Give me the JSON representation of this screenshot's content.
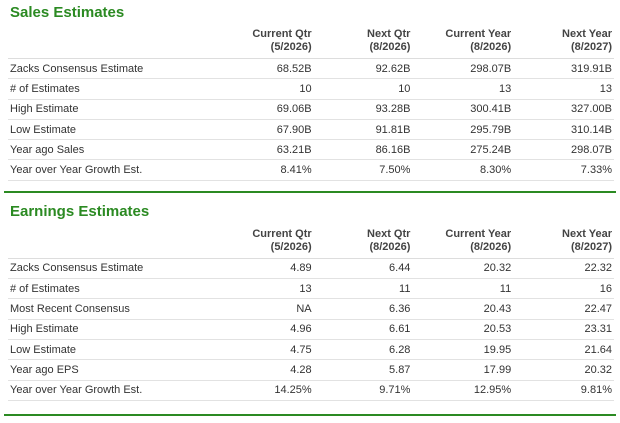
{
  "columns": [
    {
      "name": "Current Qtr",
      "date": "(5/2026)"
    },
    {
      "name": "Next Qtr",
      "date": "(8/2026)"
    },
    {
      "name": "Current Year",
      "date": "(8/2026)"
    },
    {
      "name": "Next Year",
      "date": "(8/2027)"
    }
  ],
  "sales": {
    "title": "Sales Estimates",
    "rows": [
      {
        "label": "Zacks Consensus Estimate",
        "values": [
          "68.52B",
          "92.62B",
          "298.07B",
          "319.91B"
        ]
      },
      {
        "label": "# of Estimates",
        "values": [
          "10",
          "10",
          "13",
          "13"
        ]
      },
      {
        "label": "High Estimate",
        "values": [
          "69.06B",
          "93.28B",
          "300.41B",
          "327.00B"
        ]
      },
      {
        "label": "Low Estimate",
        "values": [
          "67.90B",
          "91.81B",
          "295.79B",
          "310.14B"
        ]
      },
      {
        "label": "Year ago Sales",
        "values": [
          "63.21B",
          "86.16B",
          "275.24B",
          "298.07B"
        ]
      },
      {
        "label": "Year over Year Growth Est.",
        "values": [
          "8.41%",
          "7.50%",
          "8.30%",
          "7.33%"
        ]
      }
    ]
  },
  "earnings": {
    "title": "Earnings Estimates",
    "rows": [
      {
        "label": "Zacks Consensus Estimate",
        "values": [
          "4.89",
          "6.44",
          "20.32",
          "22.32"
        ]
      },
      {
        "label": "# of Estimates",
        "values": [
          "13",
          "11",
          "11",
          "16"
        ]
      },
      {
        "label": "Most Recent Consensus",
        "values": [
          "NA",
          "6.36",
          "20.43",
          "22.47"
        ]
      },
      {
        "label": "High Estimate",
        "values": [
          "4.96",
          "6.61",
          "20.53",
          "23.31"
        ]
      },
      {
        "label": "Low Estimate",
        "values": [
          "4.75",
          "6.28",
          "19.95",
          "21.64"
        ]
      },
      {
        "label": "Year ago EPS",
        "values": [
          "4.28",
          "5.87",
          "17.99",
          "20.32"
        ]
      },
      {
        "label": "Year over Year Growth Est.",
        "values": [
          "14.25%",
          "9.71%",
          "12.95%",
          "9.81%"
        ]
      }
    ]
  },
  "colors": {
    "accent": "#2b8a22"
  }
}
